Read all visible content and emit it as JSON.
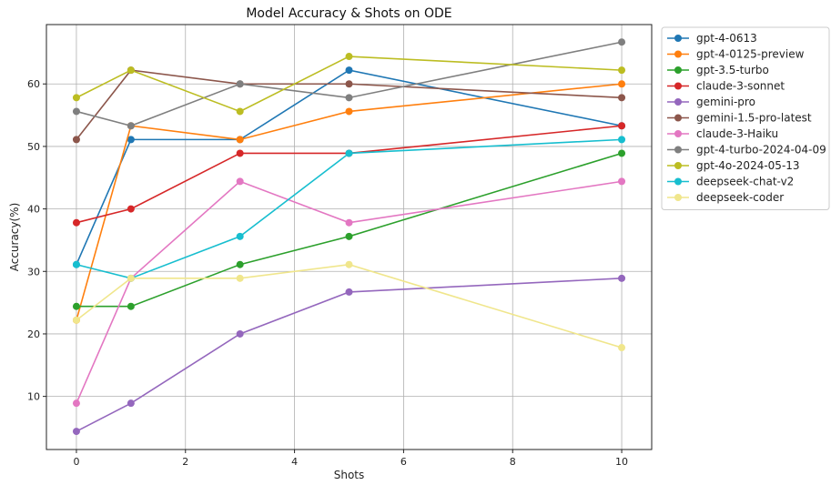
{
  "chart_data": {
    "type": "line",
    "title": "Model Accuracy & Shots on ODE",
    "xlabel": "Shots",
    "ylabel": "Accuracy(%)",
    "xlim": [
      -0.55,
      10.55
    ],
    "ylim": [
      1.5,
      69.5
    ],
    "xticks": [
      0,
      2,
      4,
      6,
      8,
      10
    ],
    "yticks": [
      10,
      20,
      30,
      40,
      50,
      60
    ],
    "grid": true,
    "legend_position": "outside-right",
    "x": [
      0,
      1,
      3,
      5,
      10
    ],
    "series": [
      {
        "name": "gpt-4-0613",
        "color": "#1f77b4",
        "values": [
          31.1,
          51.1,
          51.1,
          62.2,
          53.3
        ]
      },
      {
        "name": "gpt-4-0125-preview",
        "color": "#ff7f0e",
        "values": [
          22.2,
          53.3,
          51.1,
          55.6,
          60.0
        ]
      },
      {
        "name": "gpt-3.5-turbo",
        "color": "#2ca02c",
        "values": [
          24.4,
          24.4,
          31.1,
          35.6,
          48.9
        ]
      },
      {
        "name": "claude-3-sonnet",
        "color": "#d62728",
        "values": [
          37.8,
          40.0,
          48.9,
          48.9,
          53.3
        ]
      },
      {
        "name": "gemini-pro",
        "color": "#9467bd",
        "values": [
          4.4,
          8.9,
          20.0,
          26.7,
          28.9
        ]
      },
      {
        "name": "gemini-1.5-pro-latest",
        "color": "#8c564b",
        "values": [
          51.1,
          62.2,
          60.0,
          60.0,
          57.8
        ]
      },
      {
        "name": "claude-3-Haiku",
        "color": "#e377c2",
        "values": [
          8.9,
          28.9,
          44.4,
          37.8,
          44.4
        ]
      },
      {
        "name": "gpt-4-turbo-2024-04-09",
        "color": "#7f7f7f",
        "values": [
          55.6,
          53.3,
          60.0,
          57.8,
          66.7
        ]
      },
      {
        "name": "gpt-4o-2024-05-13",
        "color": "#bcbd22",
        "values": [
          57.8,
          62.2,
          55.6,
          64.4,
          62.2
        ]
      },
      {
        "name": "deepseek-chat-v2",
        "color": "#17becf",
        "values": [
          31.1,
          28.9,
          35.6,
          48.9,
          51.1
        ]
      },
      {
        "name": "deepseek-coder",
        "color": "#f0e68c",
        "values": [
          22.2,
          28.9,
          28.9,
          31.1,
          17.8
        ]
      }
    ]
  }
}
